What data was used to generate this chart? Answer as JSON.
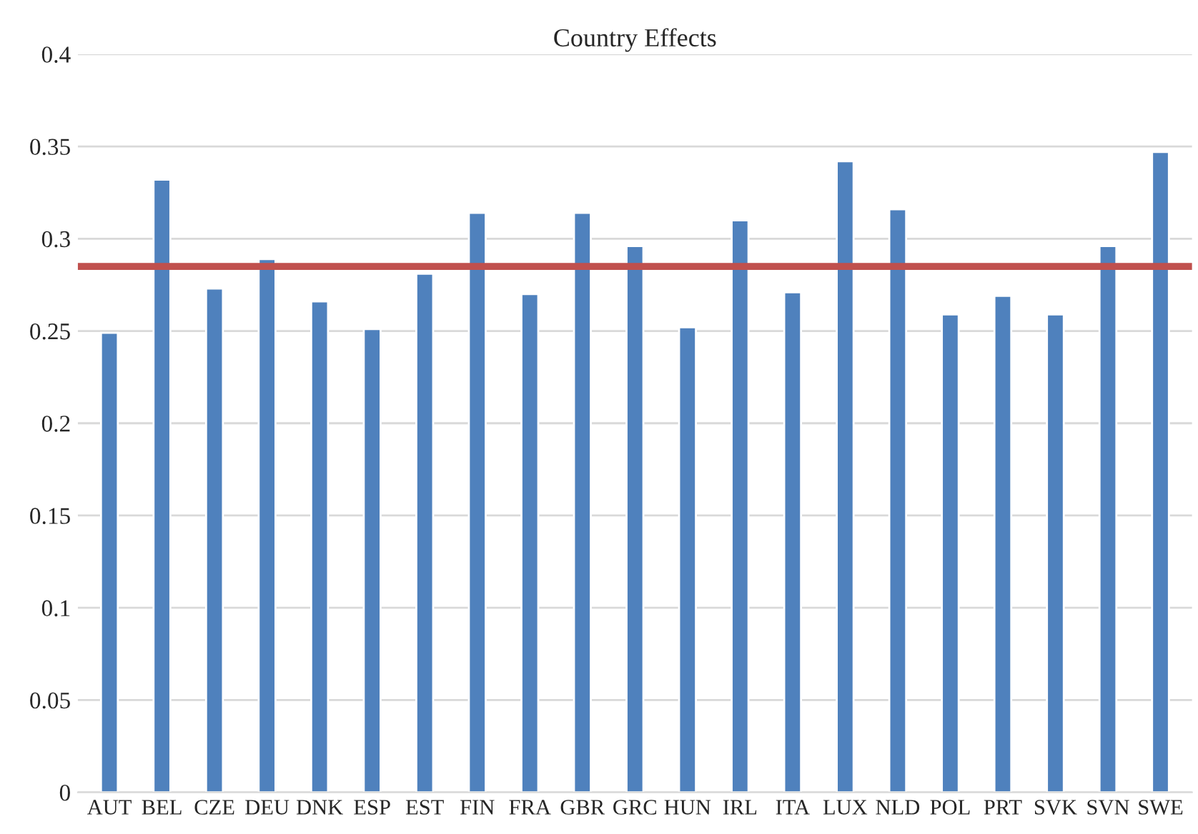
{
  "chart_data": {
    "type": "bar",
    "title": "Country Effects",
    "categories": [
      "AUT",
      "BEL",
      "CZE",
      "DEU",
      "DNK",
      "ESP",
      "EST",
      "FIN",
      "FRA",
      "GBR",
      "GRC",
      "HUN",
      "IRL",
      "ITA",
      "LUX",
      "NLD",
      "POL",
      "PRT",
      "SVK",
      "SVN",
      "SWE"
    ],
    "values": [
      0.249,
      0.332,
      0.273,
      0.289,
      0.266,
      0.251,
      0.281,
      0.314,
      0.27,
      0.314,
      0.296,
      0.252,
      0.31,
      0.271,
      0.342,
      0.316,
      0.259,
      0.269,
      0.259,
      0.296,
      0.347
    ],
    "color": "#4f81bd",
    "ref_lines": [
      {
        "axis": "y",
        "value": 0.285,
        "color": "#c0504d"
      }
    ],
    "ylim": [
      0,
      0.4
    ],
    "yticks": [
      0,
      {
        "value": 0.05,
        "label": "0.05"
      },
      {
        "value": 0.1,
        "label": "0.1"
      },
      {
        "value": 0.15,
        "label": "0.15"
      },
      {
        "value": 0.2,
        "label": "0.2"
      },
      {
        "value": 0.25,
        "label": "0.25"
      },
      {
        "value": 0.3,
        "label": "0.3"
      },
      {
        "value": 0.35,
        "label": "0.35"
      },
      {
        "value": 0.4,
        "label": "0.4"
      }
    ],
    "grid": "y"
  }
}
